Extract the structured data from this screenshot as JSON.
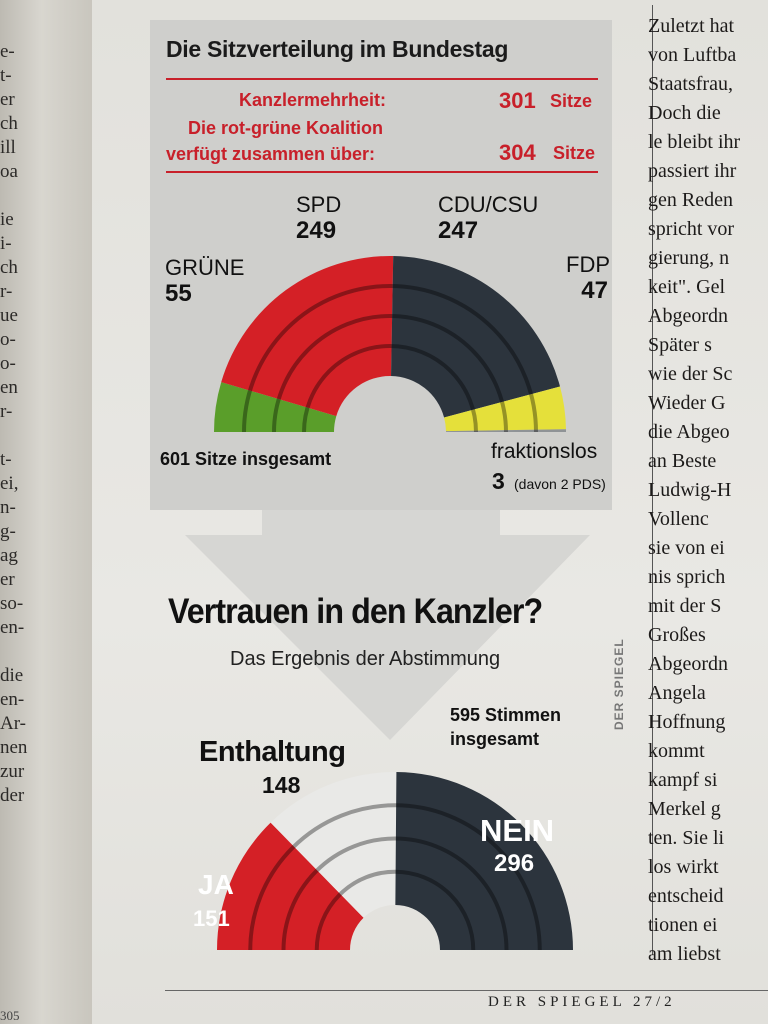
{
  "left_page": {
    "lines": [
      "e-",
      "t-",
      "er",
      "ch",
      "ill",
      "oa",
      "",
      "ie",
      "i-",
      "ch",
      "r-",
      "ue",
      "o-",
      "o-",
      "en",
      "r-",
      "",
      "t-",
      "ei,",
      "n-",
      "g-",
      "ag",
      "er",
      "so-",
      "en-",
      "",
      "die",
      "en-",
      "Ar-",
      "nen",
      "zur",
      "der"
    ],
    "page_number": "305"
  },
  "chart_title": "Die Sitzverteilung im Bundestag",
  "majority_line": {
    "label": "Kanzlermehrheit:",
    "value": "301",
    "unit": "Sitze"
  },
  "coalition_line": {
    "label_1": "Die rot-grüne Koalition",
    "label_2": "verfügt zusammen über:",
    "value": "304",
    "unit": "Sitze"
  },
  "total_seats_text": "601 Sitze insgesamt",
  "fraktionslos": {
    "label": "fraktionslos",
    "value": "3",
    "note": "(davon 2 PDS)"
  },
  "vote_title": "Vertrauen in den Kanzler?",
  "vote_subtitle": "Das Ergebnis der Abstimmung",
  "votes_total": {
    "line_1": "595 Stimmen",
    "line_2": "insgesamt"
  },
  "credit": "DER SPIEGEL",
  "colors": {
    "red": "#d42026",
    "green": "#5a9e2a",
    "dark": "#2c343d",
    "yellow": "#e5e03a",
    "grey": "#8f9396",
    "white_seat": "#e9e9e7",
    "maroon": "#7a1018"
  },
  "chart_data": [
    {
      "type": "pie",
      "layout": "parliament-semicircle",
      "title": "Die Sitzverteilung im Bundestag",
      "categories": [
        "GRÜNE",
        "SPD",
        "CDU/CSU",
        "FDP",
        "fraktionslos"
      ],
      "values": [
        55,
        249,
        247,
        47,
        3
      ],
      "colors": [
        "#5a9e2a",
        "#d42026",
        "#2c343d",
        "#e5e03a",
        "#8f9396"
      ],
      "total": 601
    },
    {
      "type": "pie",
      "layout": "parliament-semicircle",
      "title": "Vertrauen in den Kanzler?",
      "categories": [
        "JA",
        "Enthaltung",
        "NEIN"
      ],
      "values": [
        151,
        148,
        296
      ],
      "colors": [
        "#d42026",
        "#e9e9e7",
        "#2c343d"
      ],
      "total": 595
    }
  ],
  "right_column": {
    "lines": [
      "Zuletzt hat",
      "von Luftba",
      "Staatsfrau,",
      "Doch die",
      "le bleibt ihr",
      "passiert ihr",
      "gen Reden",
      "spricht vor",
      "gierung, n",
      "keit\". Gel",
      "Abgeordn",
      "Später s",
      "wie der Sc",
      "Wieder G",
      "die Abgeo",
      "an Beste",
      "Ludwig-H",
      "Vollenc",
      "sie von ei",
      "nis sprich",
      "mit der S",
      "Großes",
      "Abgeordn",
      "Angela",
      "Hoffnung",
      "kommt",
      "kampf si",
      "Merkel g",
      "ten. Sie li",
      "los wirkt",
      "entscheid",
      "tionen ei",
      "am liebst"
    ]
  },
  "footer": "DER SPIEGEL 27/2"
}
